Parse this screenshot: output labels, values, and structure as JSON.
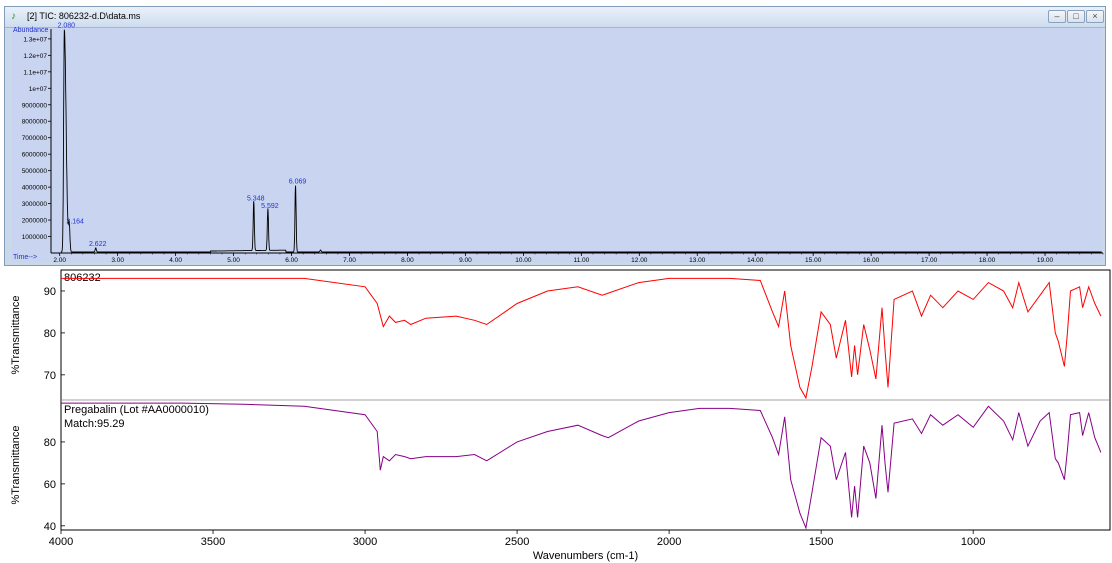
{
  "window": {
    "title": "[2] TIC: 806232-d.D\\data.ms",
    "icon": "chromatogram-icon",
    "controls": [
      "minimize",
      "maximize",
      "close"
    ]
  },
  "chart_data": [
    {
      "type": "line",
      "ylabel": "Abundance",
      "xlabel": "Time-->",
      "xlim": [
        1.85,
        20.0
      ],
      "ylim": [
        0,
        13600000
      ],
      "x_ticks": [
        "2.00",
        "3.00",
        "4.00",
        "5.00",
        "6.00",
        "7.00",
        "8.00",
        "9.00",
        "10.00",
        "11.00",
        "12.00",
        "13.00",
        "14.00",
        "15.00",
        "16.00",
        "17.00",
        "18.00",
        "19.00"
      ],
      "x_tick_values": [
        2,
        3,
        4,
        5,
        6,
        7,
        8,
        9,
        10,
        11,
        12,
        13,
        14,
        15,
        16,
        17,
        18,
        19
      ],
      "y_ticks": [
        "1.3e+07",
        "1.2e+07",
        "1.1e+07",
        "1e+07",
        "9000000",
        "8000000",
        "7000000",
        "6000000",
        "5000000",
        "4000000",
        "3000000",
        "2000000",
        "1000000"
      ],
      "y_tick_values": [
        13000000,
        12000000,
        11000000,
        10000000,
        9000000,
        8000000,
        7000000,
        6000000,
        5000000,
        4000000,
        3000000,
        2000000,
        1000000
      ],
      "peaks": [
        {
          "label": "2.080",
          "x": 2.08,
          "y": 13500000
        },
        {
          "label": "2.164",
          "x": 2.164,
          "y": 1600000
        },
        {
          "label": "2.622",
          "x": 2.622,
          "y": 250000
        },
        {
          "label": "5.348",
          "x": 5.348,
          "y": 3000000
        },
        {
          "label": "5.592",
          "x": 5.592,
          "y": 2550000
        },
        {
          "label": "6.069",
          "x": 6.069,
          "y": 4050000
        }
      ],
      "minor_peaks": [
        {
          "x": 6.5,
          "y": 120000
        }
      ],
      "colors": {
        "trace": "#000000",
        "labels": "#2233cc",
        "axis_text": "#2233cc",
        "background": "#c8d4f0"
      }
    },
    {
      "type": "line",
      "title": "806232",
      "ylabel": "%Transmittance",
      "ylim": [
        64,
        95
      ],
      "y_ticks": [
        "90",
        "80",
        "70"
      ],
      "y_tick_values": [
        90,
        80,
        70
      ],
      "x": [
        4000,
        3800,
        3600,
        3400,
        3200,
        3000,
        2960,
        2940,
        2920,
        2900,
        2870,
        2850,
        2800,
        2700,
        2640,
        2600,
        2500,
        2400,
        2300,
        2220,
        2200,
        2100,
        2000,
        1900,
        1800,
        1700,
        1660,
        1640,
        1620,
        1600,
        1570,
        1550,
        1530,
        1500,
        1470,
        1450,
        1420,
        1400,
        1390,
        1380,
        1360,
        1340,
        1320,
        1300,
        1290,
        1280,
        1260,
        1200,
        1170,
        1140,
        1100,
        1050,
        1000,
        950,
        900,
        870,
        850,
        820,
        780,
        750,
        730,
        720,
        700,
        690,
        680,
        650,
        640,
        620,
        600,
        580
      ],
      "values": [
        93,
        93,
        93,
        93,
        93,
        91,
        87,
        81.5,
        84,
        82.5,
        83,
        82,
        83.5,
        84,
        83,
        82,
        87,
        90,
        91,
        89,
        89.5,
        92,
        93,
        93,
        93,
        92.5,
        85,
        81.5,
        90,
        77,
        67,
        64.5,
        72,
        85,
        82,
        74,
        83,
        69.5,
        77,
        70,
        82,
        76,
        69,
        86,
        76,
        67,
        88,
        90,
        84,
        89,
        86,
        90,
        88,
        92,
        90,
        86,
        92,
        85,
        89,
        92,
        80,
        78,
        72,
        80,
        90,
        91,
        86,
        91,
        87,
        84
      ],
      "colors": {
        "trace": "#ff0000"
      }
    },
    {
      "type": "line",
      "title": "Pregabalin (Lot #AA0000010)",
      "annotation": "Match:95.29",
      "ylabel": "%Transmittance",
      "xlabel": "Wavenumbers (cm-1)",
      "xlim": [
        4000,
        550
      ],
      "ylim": [
        38,
        100
      ],
      "x_ticks": [
        "4000",
        "3500",
        "3000",
        "2500",
        "2000",
        "1500",
        "1000"
      ],
      "x_tick_values": [
        4000,
        3500,
        3000,
        2500,
        2000,
        1500,
        1000
      ],
      "y_ticks": [
        "80",
        "60",
        "40"
      ],
      "y_tick_values": [
        80,
        60,
        40
      ],
      "x": [
        4000,
        3800,
        3600,
        3400,
        3200,
        3000,
        2960,
        2950,
        2940,
        2920,
        2900,
        2870,
        2850,
        2800,
        2700,
        2640,
        2600,
        2500,
        2400,
        2300,
        2220,
        2200,
        2100,
        2000,
        1900,
        1800,
        1700,
        1660,
        1640,
        1620,
        1600,
        1570,
        1550,
        1530,
        1500,
        1470,
        1450,
        1420,
        1400,
        1390,
        1380,
        1360,
        1340,
        1320,
        1300,
        1290,
        1280,
        1260,
        1200,
        1170,
        1140,
        1100,
        1050,
        1000,
        950,
        900,
        870,
        850,
        820,
        780,
        750,
        730,
        720,
        700,
        690,
        680,
        650,
        640,
        620,
        600,
        580
      ],
      "values": [
        98.5,
        98.5,
        98.5,
        98,
        97,
        93,
        85,
        66.5,
        73,
        71,
        74,
        73,
        72,
        73,
        73,
        74,
        71,
        80,
        85,
        88,
        83,
        82,
        90,
        94,
        96,
        96,
        95,
        82,
        74,
        92,
        62,
        46,
        39,
        56,
        82,
        78,
        62,
        75,
        44,
        59,
        44,
        78,
        70,
        53,
        88,
        70,
        56,
        89,
        91,
        84,
        93,
        88,
        93,
        87,
        97,
        90,
        81,
        94,
        78,
        90,
        94,
        72,
        70,
        62,
        76,
        93,
        94,
        83,
        94,
        82,
        75
      ],
      "colors": {
        "trace": "#880088"
      }
    }
  ]
}
